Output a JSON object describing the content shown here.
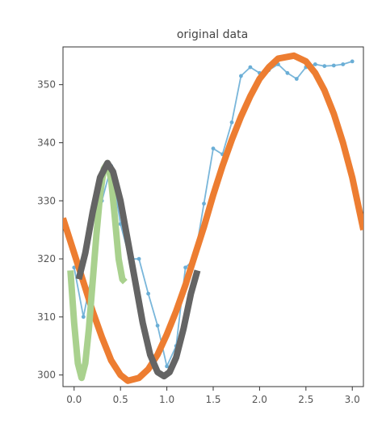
{
  "chart_data": {
    "type": "line",
    "title": "original data",
    "xlabel": "",
    "ylabel": "",
    "xlim": [
      -0.12,
      3.12
    ],
    "ylim": [
      298,
      356.5
    ],
    "xticks": [
      0.0,
      0.5,
      1.0,
      1.5,
      2.0,
      2.5,
      3.0
    ],
    "xtick_labels": [
      "0.0",
      "0.5",
      "1.0",
      "1.5",
      "2.0",
      "2.5",
      "3.0"
    ],
    "yticks": [
      300,
      310,
      320,
      330,
      340,
      350
    ],
    "ytick_labels": [
      "300",
      "310",
      "320",
      "330",
      "340",
      "350"
    ],
    "grid": false,
    "legend": "none",
    "series": [
      {
        "kind": "line+markers",
        "color": "#6aaed6",
        "x": [
          0.0,
          0.1,
          0.2,
          0.3,
          0.4,
          0.5,
          0.6,
          0.7,
          0.8,
          0.9,
          1.0,
          1.1,
          1.2,
          1.3,
          1.4,
          1.5,
          1.6,
          1.7,
          1.8,
          1.9,
          2.0,
          2.1,
          2.2,
          2.3,
          2.4,
          2.5,
          2.6,
          2.7,
          2.8,
          2.9,
          3.0
        ],
        "y": [
          318.5,
          310.0,
          318.0,
          330.0,
          336.0,
          326.0,
          320.0,
          320.0,
          314.0,
          308.5,
          301.5,
          305.0,
          318.5,
          320.0,
          329.5,
          339.0,
          338.0,
          343.5,
          351.5,
          353.0,
          352.0,
          352.5,
          353.5,
          352.0,
          351.0,
          353.0,
          353.5,
          353.2,
          353.3,
          353.5,
          354.0
        ]
      },
      {
        "kind": "fit-line",
        "color": "#ed7d31",
        "x": [
          -0.12,
          0.0,
          0.1,
          0.2,
          0.3,
          0.4,
          0.5,
          0.58,
          0.7,
          0.8,
          0.9,
          1.0,
          1.1,
          1.2,
          1.3,
          1.4,
          1.5,
          1.6,
          1.7,
          1.8,
          1.9,
          2.0,
          2.1,
          2.2,
          2.37,
          2.5,
          2.6,
          2.7,
          2.8,
          2.9,
          3.0,
          3.12
        ],
        "y": [
          327.0,
          321.0,
          316.0,
          311.0,
          306.5,
          302.5,
          300.0,
          299.0,
          299.5,
          301.0,
          303.5,
          307.0,
          311.0,
          315.5,
          320.5,
          325.5,
          331.0,
          336.0,
          340.5,
          344.5,
          348.0,
          351.0,
          353.0,
          354.5,
          355.0,
          354.0,
          352.0,
          349.0,
          345.0,
          340.0,
          334.0,
          325.0
        ]
      },
      {
        "kind": "fit-line",
        "color": "#a9d18e",
        "x": [
          -0.04,
          0.0,
          0.04,
          0.08,
          0.12,
          0.16,
          0.2,
          0.24,
          0.28,
          0.32,
          0.36,
          0.4,
          0.44,
          0.48,
          0.52,
          0.55
        ],
        "y": [
          318.0,
          309.0,
          302.0,
          299.5,
          302.0,
          308.0,
          316.0,
          324.0,
          331.0,
          335.5,
          336.5,
          333.5,
          327.0,
          320.0,
          316.5,
          316.0
        ]
      },
      {
        "kind": "fit-line",
        "color": "#646464",
        "x": [
          0.05,
          0.12,
          0.2,
          0.28,
          0.36,
          0.42,
          0.5,
          0.58,
          0.66,
          0.74,
          0.82,
          0.9,
          0.97,
          1.03,
          1.1,
          1.18,
          1.26,
          1.33
        ],
        "y": [
          316.5,
          321.0,
          328.0,
          334.0,
          336.5,
          335.0,
          330.0,
          323.0,
          316.0,
          309.0,
          303.5,
          300.5,
          299.8,
          300.5,
          303.0,
          308.0,
          314.0,
          318.0
        ]
      }
    ]
  }
}
